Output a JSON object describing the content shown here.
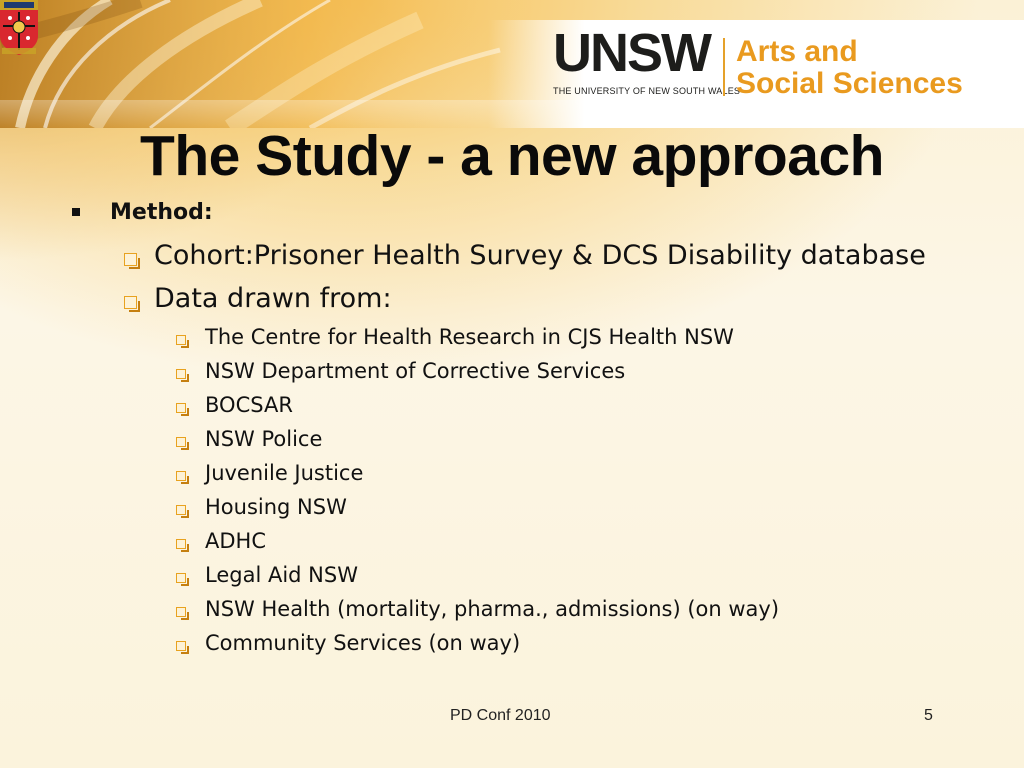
{
  "header": {
    "logo_wordmark": "UNSW",
    "logo_subtitle": "THE UNIVERSITY OF NEW SOUTH WALES",
    "faculty_line1": "Arts and",
    "faculty_line2": "Social Sciences",
    "crest_icon": "unsw-crest",
    "accent_color": "#e99a1f"
  },
  "slide": {
    "title": "The Study - a new approach",
    "method_label": "Method:",
    "level2": [
      "Cohort:Prisoner Health Survey & DCS Disability database",
      "Data drawn from:"
    ],
    "sources": [
      "The Centre for Health Research in CJS Health NSW",
      "NSW Department of Corrective Services",
      "BOCSAR",
      "NSW Police",
      "Juvenile Justice",
      "Housing NSW",
      "ADHC",
      "Legal Aid NSW",
      "NSW Health (mortality, pharma., admissions) (on way)",
      "Community Services (on way)"
    ]
  },
  "footer": {
    "conference": "PD Conf 2010",
    "page_number": "5"
  }
}
